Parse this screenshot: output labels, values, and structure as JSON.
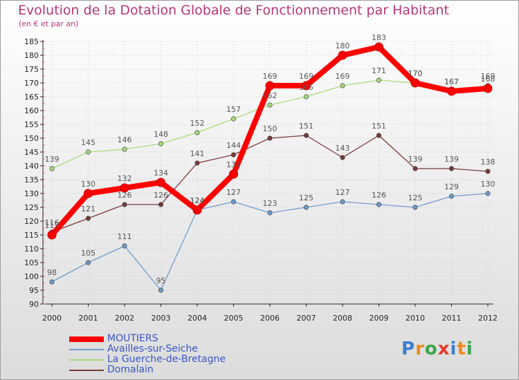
{
  "chart_data": {
    "type": "line",
    "title": "Evolution de la Dotation Globale de Fonctionnement par Habitant",
    "subtitle": "(en € et par an)",
    "categories": [
      "2000",
      "2001",
      "2002",
      "2003",
      "2004",
      "2005",
      "2006",
      "2007",
      "2008",
      "2009",
      "2010",
      "2011",
      "2012"
    ],
    "ylim": [
      90,
      185
    ],
    "yticks": [
      90,
      95,
      100,
      105,
      110,
      115,
      120,
      125,
      130,
      135,
      140,
      145,
      150,
      155,
      160,
      165,
      170,
      175,
      180,
      185
    ],
    "series": [
      {
        "name": "MOUTIERS",
        "color": "#ff0000",
        "values": [
          115,
          130,
          132,
          134,
          124,
          137,
          169,
          169,
          180,
          183,
          170,
          167,
          168
        ]
      },
      {
        "name": "Availles-sur-Seiche",
        "color": "#6f9ccc",
        "values": [
          98,
          105,
          111,
          95,
          124,
          127,
          123,
          125,
          127,
          126,
          125,
          129,
          130
        ]
      },
      {
        "name": "La Guerche-de-Bretagne",
        "color": "#a8dc7c",
        "values": [
          139,
          145,
          146,
          148,
          152,
          157,
          162,
          165,
          169,
          171,
          170,
          167,
          169
        ]
      },
      {
        "name": "Domalain",
        "color": "#7a3a3a",
        "values": [
          116,
          121,
          126,
          126,
          141,
          144,
          150,
          151,
          143,
          151,
          139,
          139,
          138
        ]
      }
    ],
    "legend_position": "bottom-left"
  },
  "logo": {
    "letters": [
      "P",
      "r",
      "o",
      "x",
      "i",
      "t",
      "i"
    ],
    "colors": [
      "#3a7fd0",
      "#f08a1c",
      "#3aa64a",
      "#e23a2a",
      "#3a7fd0",
      "#f08a1c",
      "#3aa64a"
    ]
  }
}
